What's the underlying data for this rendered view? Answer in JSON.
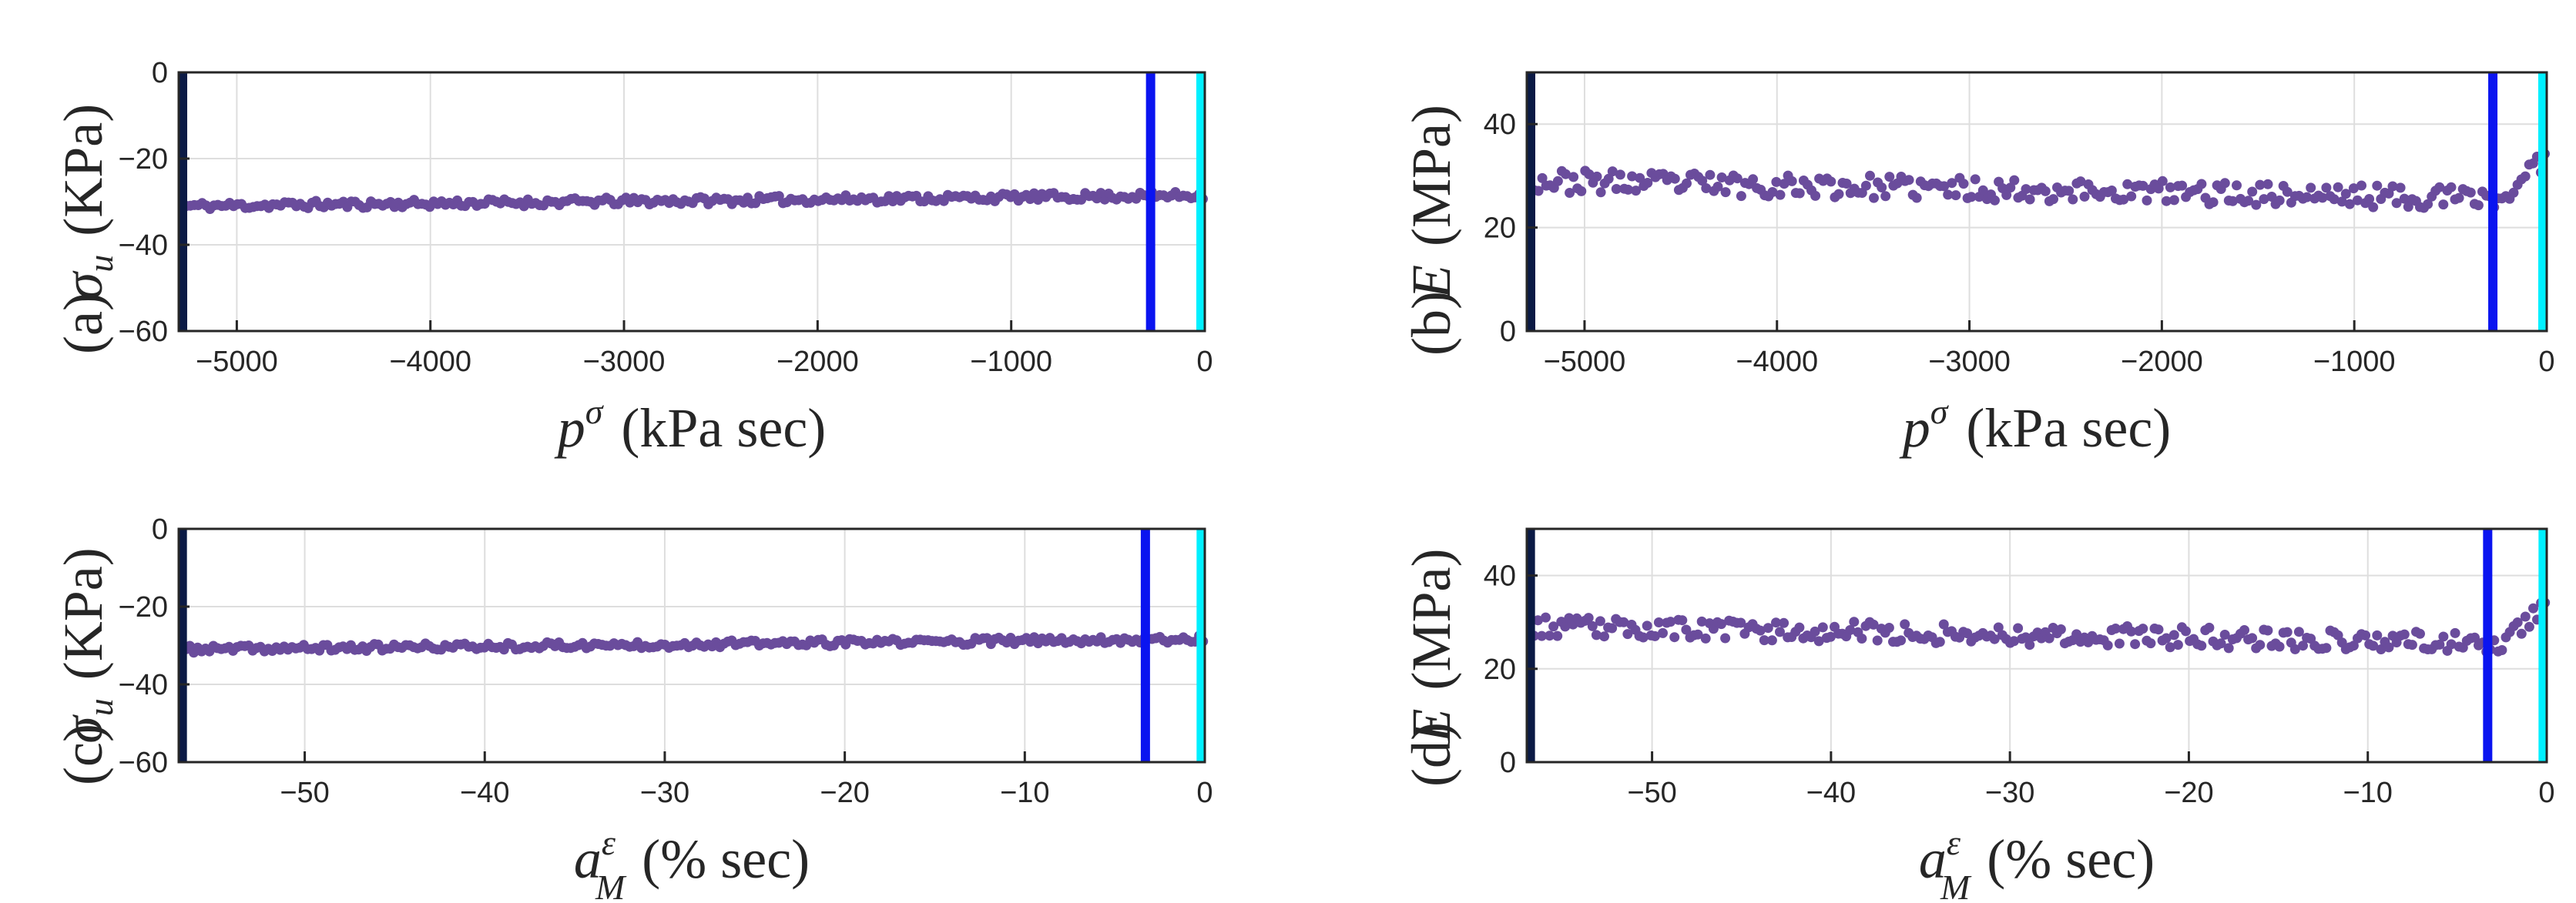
{
  "figure": {
    "description_panels": [
      "a",
      "b",
      "c",
      "d"
    ]
  },
  "chart_data": [
    {
      "type": "scatter",
      "panel_label": "(a)",
      "ylabel_symbol": "σ",
      "ylabel_subscript": "u",
      "ylabel_unit": "(KPa)",
      "xlabel_symbol": "p",
      "xlabel_superscript": "σ",
      "xlabel_unit": "(kPa sec)",
      "xlim": [
        -5300,
        0
      ],
      "ylim": [
        -60,
        0
      ],
      "xticks": [
        -5000,
        -4000,
        -3000,
        -2000,
        -1000,
        0
      ],
      "xtick_labels": [
        "−5000",
        "−4000",
        "−3000",
        "−2000",
        "−1000",
        "0"
      ],
      "yticks": [
        -60,
        -40,
        -20,
        0
      ],
      "ytick_labels": [
        "−60",
        "−40",
        "−20",
        "0"
      ],
      "grid": true,
      "vertical_lines": [
        {
          "x": -5280,
          "color": "#0b1a45"
        },
        {
          "x": -280,
          "color": "#0a14f0"
        },
        {
          "x": -20,
          "color": "#00f0ff"
        }
      ],
      "series": [
        {
          "name": "data",
          "color": "#6a4c9c",
          "n_points": 260,
          "x_start": -5260,
          "x_end": -10,
          "y_start": -31,
          "y_end": -28.5,
          "noise": 0.9,
          "seed": 11
        }
      ]
    },
    {
      "type": "scatter",
      "panel_label": "(b)",
      "ylabel_symbol": "E",
      "ylabel_subscript": "",
      "ylabel_unit": "(MPa)",
      "xlabel_symbol": "p",
      "xlabel_superscript": "σ",
      "xlabel_unit": "(kPa sec)",
      "xlim": [
        -5300,
        0
      ],
      "ylim": [
        0,
        50
      ],
      "xticks": [
        -5000,
        -4000,
        -3000,
        -2000,
        -1000,
        0
      ],
      "xtick_labels": [
        "−5000",
        "−4000",
        "−3000",
        "−2000",
        "−1000",
        "0"
      ],
      "yticks": [
        0,
        20,
        40
      ],
      "ytick_labels": [
        "0",
        "20",
        "40"
      ],
      "grid": true,
      "vertical_lines": [
        {
          "x": -5280,
          "color": "#0b1a45"
        },
        {
          "x": -280,
          "color": "#0a14f0"
        },
        {
          "x": -20,
          "color": "#00f0ff"
        }
      ],
      "series": [
        {
          "name": "data",
          "color": "#6a4c9c",
          "n_points": 260,
          "x_start": -5260,
          "x_end": -10,
          "y_start": 29,
          "y_end": 25.5,
          "noise": 2.2,
          "seed": 23,
          "tail_rise": 8
        }
      ]
    },
    {
      "type": "scatter",
      "panel_label": "(c)",
      "ylabel_symbol": "σ",
      "ylabel_subscript": "u",
      "ylabel_unit": "(KPa)",
      "xlabel_symbol": "a",
      "xlabel_superscript": "ε",
      "xlabel_subscript": "M",
      "xlabel_unit": "(% sec)",
      "xlim": [
        -57,
        0
      ],
      "ylim": [
        -60,
        0
      ],
      "xticks": [
        -50,
        -40,
        -30,
        -20,
        -10,
        0
      ],
      "xtick_labels": [
        "−50",
        "−40",
        "−30",
        "−20",
        "−10",
        "0"
      ],
      "yticks": [
        -60,
        -40,
        -20,
        0
      ],
      "ytick_labels": [
        "−60",
        "−40",
        "−20",
        "0"
      ],
      "grid": true,
      "vertical_lines": [
        {
          "x": -56.8,
          "color": "#0b1a45"
        },
        {
          "x": -3.3,
          "color": "#0a14f0"
        },
        {
          "x": -0.2,
          "color": "#00f0ff"
        }
      ],
      "series": [
        {
          "name": "data",
          "color": "#6a4c9c",
          "n_points": 260,
          "x_start": -56.6,
          "x_end": -0.1,
          "y_start": -31,
          "y_end": -28.3,
          "noise": 0.9,
          "seed": 37
        }
      ]
    },
    {
      "type": "scatter",
      "panel_label": "(d)",
      "ylabel_symbol": "E",
      "ylabel_subscript": "",
      "ylabel_unit": "(MPa)",
      "xlabel_symbol": "a",
      "xlabel_superscript": "ε",
      "xlabel_subscript": "M",
      "xlabel_unit": "(% sec)",
      "xlim": [
        -57,
        0
      ],
      "ylim": [
        0,
        50
      ],
      "xticks": [
        -50,
        -40,
        -30,
        -20,
        -10,
        0
      ],
      "xtick_labels": [
        "−50",
        "−40",
        "−30",
        "−20",
        "−10",
        "0"
      ],
      "yticks": [
        0,
        20,
        40
      ],
      "ytick_labels": [
        "0",
        "20",
        "40"
      ],
      "grid": true,
      "vertical_lines": [
        {
          "x": -56.8,
          "color": "#0b1a45"
        },
        {
          "x": -3.3,
          "color": "#0a14f0"
        },
        {
          "x": -0.2,
          "color": "#00f0ff"
        }
      ],
      "series": [
        {
          "name": "data",
          "color": "#6a4c9c",
          "n_points": 260,
          "x_start": -56.6,
          "x_end": -0.1,
          "y_start": 29,
          "y_end": 25.5,
          "noise": 2.2,
          "seed": 53,
          "tail_rise": 8
        }
      ]
    }
  ]
}
